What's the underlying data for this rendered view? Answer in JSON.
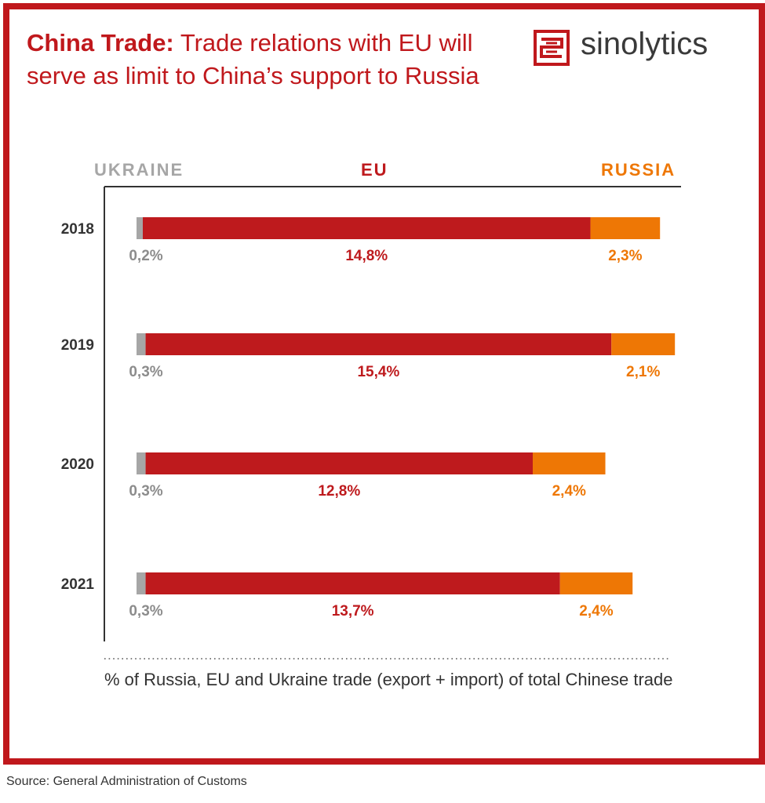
{
  "header": {
    "title_bold": "China Trade:",
    "title_rest": " Trade relations with EU will serve as limit to China’s support to Russia",
    "logo_text": "sinolytics",
    "logo_icon": "sinolytics-logo-icon"
  },
  "footnote": "% of Russia, EU and Ukraine trade (export + import) of total Chinese trade",
  "source": "Source: General Administration of Customs",
  "colors": {
    "frame": "#c0181c",
    "ukraine": "#a6a6a6",
    "eu": "#be1a1d",
    "russia": "#ee7705",
    "axis": "#333333"
  },
  "chart_data": {
    "type": "bar",
    "orientation": "horizontal",
    "stacked": true,
    "categories": [
      "2018",
      "2019",
      "2020",
      "2021"
    ],
    "series": [
      {
        "name": "UKRAINE",
        "key": "ukraine",
        "values": [
          0.2,
          0.3,
          0.3,
          0.3
        ],
        "labels": [
          "0,2%",
          "0,3%",
          "0,3%",
          "0,3%"
        ]
      },
      {
        "name": "EU",
        "key": "eu",
        "values": [
          14.8,
          15.4,
          12.8,
          13.7
        ],
        "labels": [
          "14,8%",
          "15,4%",
          "12,8%",
          "13,7%"
        ]
      },
      {
        "name": "RUSSIA",
        "key": "russia",
        "values": [
          2.3,
          2.1,
          2.4,
          2.4
        ],
        "labels": [
          "2,3%",
          "2,1%",
          "2,4%",
          "2,4%"
        ]
      }
    ],
    "legend_position": "top",
    "xlim": [
      0,
      17.8
    ]
  }
}
